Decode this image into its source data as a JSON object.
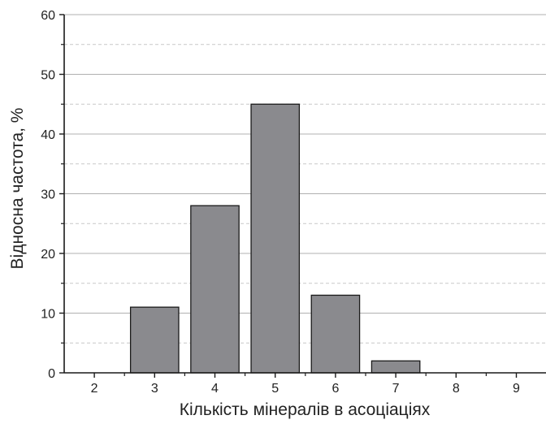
{
  "chart_data": {
    "type": "bar",
    "title": "",
    "xlabel": "Кількість мінералів в асоціаціях",
    "ylabel": "Відносна частота, %",
    "categories": [
      "2",
      "3",
      "4",
      "5",
      "6",
      "7",
      "8",
      "9"
    ],
    "values": [
      0,
      11,
      28,
      45,
      13,
      2,
      0,
      0
    ],
    "xlim": [
      1.5,
      9.5
    ],
    "ylim": [
      0,
      60
    ],
    "y_ticks": [
      0,
      10,
      20,
      30,
      40,
      50,
      60
    ],
    "grid": true,
    "grid_style": "solid major, dashed minor, horizontal only",
    "legend": "none",
    "colors": {
      "bar_fill": "#8a8a8e",
      "bar_stroke": "#1a1a1a",
      "axis": "#1a1a1a",
      "grid_major": "#b0b0b0",
      "grid_minor": "#c8c8c8"
    }
  }
}
